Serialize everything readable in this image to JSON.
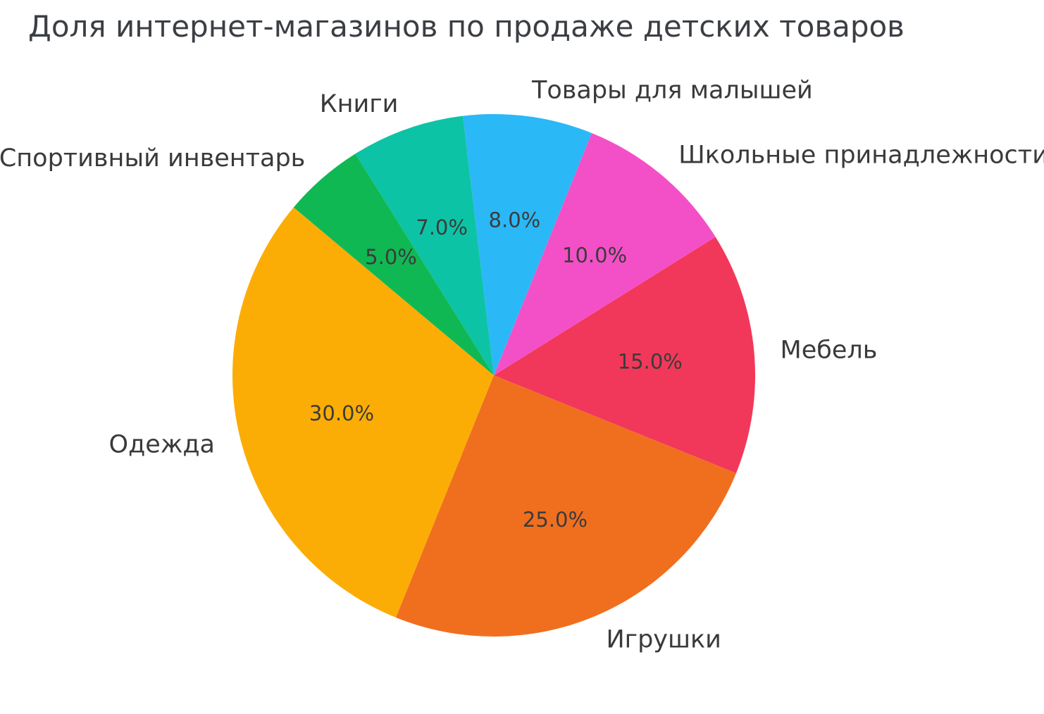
{
  "chart_data": {
    "type": "pie",
    "title": "Доля интернет-магазинов по продаже детских товаров",
    "slices": [
      {
        "id": "clothing",
        "label": "Одежда",
        "value": 30.0,
        "pct_label": "30.0%",
        "color": "#FCAD05"
      },
      {
        "id": "toys",
        "label": "Игрушки",
        "value": 25.0,
        "pct_label": "25.0%",
        "color": "#F06F1F"
      },
      {
        "id": "furniture",
        "label": "Мебель",
        "value": 15.0,
        "pct_label": "15.0%",
        "color": "#F2385A"
      },
      {
        "id": "school-supplies",
        "label": "Школьные принадлежности",
        "value": 10.0,
        "pct_label": "10.0%",
        "color": "#F350C8"
      },
      {
        "id": "baby-products",
        "label": "Товары для малышей",
        "value": 8.0,
        "pct_label": "8.0%",
        "color": "#2BB8F7"
      },
      {
        "id": "books",
        "label": "Книги",
        "value": 7.0,
        "pct_label": "7.0%",
        "color": "#0DC3A6"
      },
      {
        "id": "sports-equipment",
        "label": "Спортивный инвентарь",
        "value": 5.0,
        "pct_label": "5.0%",
        "color": "#10B853"
      }
    ],
    "start_angle": 140,
    "counterclockwise": true,
    "label_distance": 1.1,
    "pct_distance": 0.6,
    "legend": false,
    "background": "#FFFFFF",
    "text_color": "#3A3A3A",
    "title_color": "#3B3F44"
  }
}
